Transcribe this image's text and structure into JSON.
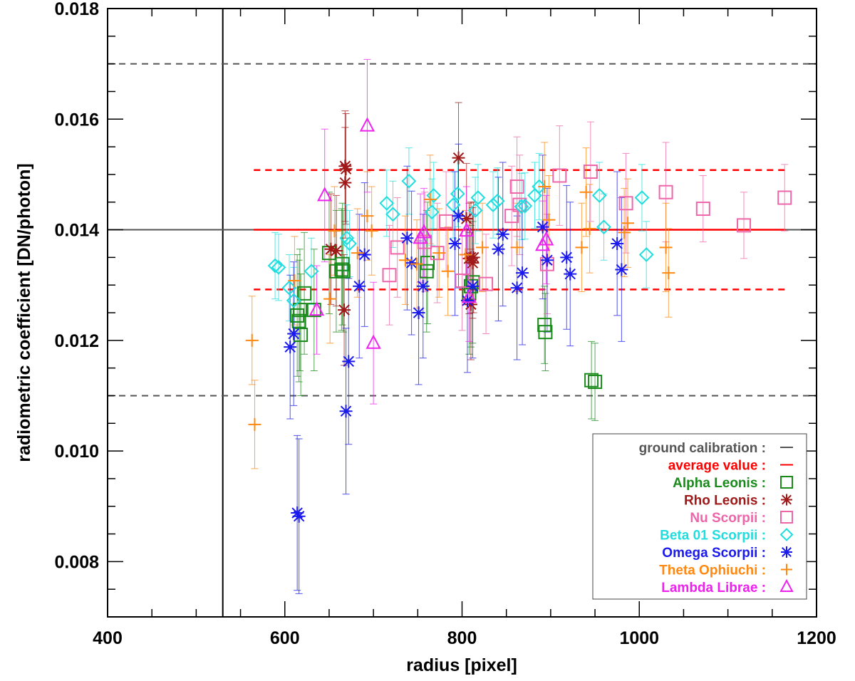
{
  "chart_data": {
    "type": "scatter",
    "xlabel": "radius [pixel]",
    "ylabel": "radiometric coefficient [DN/photon]",
    "xlim": [
      400,
      1200
    ],
    "ylim": [
      0.007,
      0.018
    ],
    "x_ticks": [
      "400",
      "600",
      "800",
      "1000",
      "1200"
    ],
    "y_ticks": [
      "0.008",
      "0.010",
      "0.012",
      "0.014",
      "0.016",
      "0.018"
    ],
    "x_tick_values": [
      400,
      600,
      800,
      1000,
      1200
    ],
    "y_tick_values": [
      0.008,
      0.01,
      0.012,
      0.014,
      0.016,
      0.018
    ],
    "grid": false,
    "legend_position": "bottom-right",
    "vertical_line_x": 530,
    "reference_lines": [
      {
        "legend": "ground calibration :",
        "y": 0.014,
        "color": "#555555",
        "style": "solid",
        "x_range": "full"
      },
      {
        "y": 0.017,
        "color": "#555555",
        "style": "dashed",
        "x_range": "full"
      },
      {
        "y": 0.011,
        "color": "#555555",
        "style": "dashed",
        "x_range": "full"
      },
      {
        "legend": "average value :",
        "y": 0.014,
        "color": "#ff0000",
        "style": "solid",
        "x_range": [
          565,
          1165
        ]
      },
      {
        "y": 0.01508,
        "color": "#ff0000",
        "style": "dashed",
        "x_range": [
          565,
          1165
        ]
      },
      {
        "y": 0.01292,
        "color": "#ff0000",
        "style": "dashed",
        "x_range": [
          565,
          1165
        ]
      }
    ],
    "series": [
      {
        "name": "Alpha Leonis :",
        "marker": "square",
        "color": "#1a8a1a",
        "points": [
          [
            614,
            0.01245,
            0.0011
          ],
          [
            616,
            0.01235,
            0.0011
          ],
          [
            617,
            0.01255,
            0.0011
          ],
          [
            618,
            0.0121,
            0.0011
          ],
          [
            622,
            0.01285,
            0.0011
          ],
          [
            633,
            0.01255,
            0.0011
          ],
          [
            650,
            0.01358,
            0.0011
          ],
          [
            658,
            0.01325,
            0.0011
          ],
          [
            664,
            0.01328,
            0.0011
          ],
          [
            665,
            0.01338,
            0.0011
          ],
          [
            666,
            0.01325,
            0.0011
          ],
          [
            760,
            0.01325,
            0.0011
          ],
          [
            761,
            0.0134,
            0.0011
          ],
          [
            808,
            0.01285,
            0.0011
          ],
          [
            810,
            0.01298,
            0.0011
          ],
          [
            812,
            0.01305,
            0.0011
          ],
          [
            893,
            0.01228,
            0.0007
          ],
          [
            894,
            0.01215,
            0.0007
          ],
          [
            946,
            0.01128,
            0.0007
          ],
          [
            950,
            0.01125,
            0.0007
          ]
        ]
      },
      {
        "name": "Rho Leonis :",
        "marker": "asterisk",
        "color": "#a01818",
        "points": [
          [
            652,
            0.01365,
            0.001
          ],
          [
            658,
            0.01362,
            0.001
          ],
          [
            667,
            0.01255,
            0.001
          ],
          [
            668,
            0.01515,
            0.001
          ],
          [
            668,
            0.01485,
            0.001
          ],
          [
            669,
            0.0151,
            0.001
          ],
          [
            796,
            0.0153,
            0.001
          ],
          [
            805,
            0.0142,
            0.001
          ],
          [
            808,
            0.01348,
            0.001
          ],
          [
            810,
            0.0135,
            0.001
          ],
          [
            810,
            0.01265,
            0.001
          ],
          [
            812,
            0.0134,
            0.001
          ],
          [
            813,
            0.0135,
            0.001
          ]
        ]
      },
      {
        "name": "Nu Scorpii :",
        "marker": "square",
        "color": "#ee66aa",
        "points": [
          [
            718,
            0.01318,
            0.0009
          ],
          [
            727,
            0.01368,
            0.0009
          ],
          [
            758,
            0.01378,
            0.0009
          ],
          [
            772,
            0.01358,
            0.0009
          ],
          [
            782,
            0.01415,
            0.0009
          ],
          [
            800,
            0.01308,
            0.0009
          ],
          [
            827,
            0.01302,
            0.0009
          ],
          [
            856,
            0.01425,
            0.0009
          ],
          [
            862,
            0.01478,
            0.0009
          ],
          [
            865,
            0.01445,
            0.0009
          ],
          [
            896,
            0.01338,
            0.0009
          ],
          [
            910,
            0.01498,
            0.0009
          ],
          [
            945,
            0.01505,
            0.0009
          ],
          [
            985,
            0.01448,
            0.0009
          ],
          [
            1030,
            0.01468,
            0.0009
          ],
          [
            1072,
            0.01438,
            0.0006
          ],
          [
            1118,
            0.01408,
            0.0006
          ],
          [
            1164,
            0.01458,
            0.0006
          ]
        ]
      },
      {
        "name": "Beta 01 Scorpii :",
        "marker": "diamond",
        "color": "#22dddd",
        "points": [
          [
            589,
            0.01335,
            0.0006
          ],
          [
            593,
            0.01332,
            0.0006
          ],
          [
            605,
            0.01295,
            0.0006
          ],
          [
            610,
            0.01272,
            0.0006
          ],
          [
            630,
            0.01325,
            0.0006
          ],
          [
            670,
            0.01385,
            0.0006
          ],
          [
            673,
            0.01375,
            0.0006
          ],
          [
            715,
            0.01448,
            0.0006
          ],
          [
            722,
            0.01428,
            0.0006
          ],
          [
            740,
            0.01488,
            0.0006
          ],
          [
            766,
            0.01432,
            0.0006
          ],
          [
            768,
            0.01462,
            0.0006
          ],
          [
            790,
            0.01445,
            0.0006
          ],
          [
            795,
            0.01465,
            0.0006
          ],
          [
            815,
            0.01435,
            0.0006
          ],
          [
            818,
            0.01458,
            0.0006
          ],
          [
            835,
            0.01445,
            0.0006
          ],
          [
            840,
            0.01452,
            0.0006
          ],
          [
            867,
            0.01442,
            0.0006
          ],
          [
            871,
            0.01443,
            0.0006
          ],
          [
            882,
            0.01462,
            0.0006
          ],
          [
            887,
            0.01478,
            0.0006
          ],
          [
            955,
            0.01462,
            0.0006
          ],
          [
            960,
            0.01405,
            0.0006
          ],
          [
            1003,
            0.01458,
            0.0006
          ],
          [
            1008,
            0.01355,
            0.0006
          ]
        ]
      },
      {
        "name": "Omega Scorpii :",
        "marker": "asterisk",
        "color": "#1a1aee",
        "points": [
          [
            606,
            0.01188,
            0.0013
          ],
          [
            610,
            0.01212,
            0.0013
          ],
          [
            614,
            0.00888,
            0.0014
          ],
          [
            616,
            0.00882,
            0.0014
          ],
          [
            669,
            0.01072,
            0.0015
          ],
          [
            672,
            0.01162,
            0.0015
          ],
          [
            684,
            0.01298,
            0.0013
          ],
          [
            690,
            0.01355,
            0.0013
          ],
          [
            738,
            0.01385,
            0.0013
          ],
          [
            743,
            0.0134,
            0.0013
          ],
          [
            751,
            0.0125,
            0.0013
          ],
          [
            756,
            0.01298,
            0.0013
          ],
          [
            792,
            0.01375,
            0.0013
          ],
          [
            796,
            0.01425,
            0.0013
          ],
          [
            806,
            0.01272,
            0.0013
          ],
          [
            812,
            0.01298,
            0.0013
          ],
          [
            841,
            0.01365,
            0.0013
          ],
          [
            846,
            0.01392,
            0.0013
          ],
          [
            862,
            0.01295,
            0.0013
          ],
          [
            868,
            0.01322,
            0.0013
          ],
          [
            891,
            0.01405,
            0.0013
          ],
          [
            896,
            0.01345,
            0.0013
          ],
          [
            918,
            0.0135,
            0.0013
          ],
          [
            922,
            0.0132,
            0.0013
          ],
          [
            975,
            0.01375,
            0.0013
          ],
          [
            980,
            0.01328,
            0.0013
          ]
        ]
      },
      {
        "name": "Theta Ophiuchi :",
        "marker": "plus",
        "color": "#ff8811",
        "points": [
          [
            563,
            0.012,
            0.0008
          ],
          [
            566,
            0.01048,
            0.0008
          ],
          [
            611,
            0.01308,
            0.0008
          ],
          [
            651,
            0.01275,
            0.0008
          ],
          [
            656,
            0.01398,
            0.0008
          ],
          [
            682,
            0.01358,
            0.0008
          ],
          [
            693,
            0.01425,
            0.0008
          ],
          [
            698,
            0.01398,
            0.0008
          ],
          [
            736,
            0.01345,
            0.0008
          ],
          [
            749,
            0.01338,
            0.0008
          ],
          [
            764,
            0.01455,
            0.0008
          ],
          [
            774,
            0.01358,
            0.0008
          ],
          [
            784,
            0.01325,
            0.0008
          ],
          [
            804,
            0.01355,
            0.0008
          ],
          [
            823,
            0.01368,
            0.0008
          ],
          [
            862,
            0.01368,
            0.0008
          ],
          [
            893,
            0.01478,
            0.0008
          ],
          [
            898,
            0.01418,
            0.0008
          ],
          [
            935,
            0.01368,
            0.0008
          ],
          [
            940,
            0.01468,
            0.0008
          ],
          [
            944,
            0.01402,
            0.0008
          ],
          [
            983,
            0.01395,
            0.0008
          ],
          [
            987,
            0.01412,
            0.0008
          ],
          [
            1030,
            0.01368,
            0.0008
          ],
          [
            1033,
            0.01322,
            0.0008
          ]
        ]
      },
      {
        "name": "Lambda Librae :",
        "marker": "triangle",
        "color": "#ee22ee",
        "points": [
          [
            636,
            0.01255,
            0.0008
          ],
          [
            645,
            0.01462,
            0.0012
          ],
          [
            693,
            0.01588,
            0.0012
          ],
          [
            700,
            0.01195,
            0.0011
          ],
          [
            753,
            0.01385,
            0.0008
          ],
          [
            757,
            0.01395,
            0.0008
          ],
          [
            805,
            0.01398,
            0.0008
          ],
          [
            808,
            0.01278,
            0.0008
          ],
          [
            891,
            0.01372,
            0.0008
          ],
          [
            895,
            0.01382,
            0.0008
          ]
        ]
      }
    ]
  }
}
